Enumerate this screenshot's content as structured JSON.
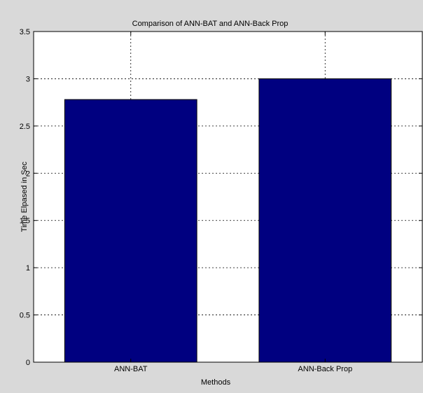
{
  "chart_data": {
    "type": "bar",
    "title": "Comparison of ANN-BAT and ANN-Back Prop",
    "xlabel": "Methods",
    "ylabel": "Time Elpased in Sec",
    "categories": [
      "ANN-BAT",
      "ANN-Back Prop"
    ],
    "values": [
      2.78,
      3.0
    ],
    "ylim": [
      0,
      3.5
    ],
    "yticks": [
      0,
      0.5,
      1,
      1.5,
      2,
      2.5,
      3,
      3.5
    ],
    "ytick_labels": [
      "0",
      "0.5",
      "1",
      "1.5",
      "2",
      "2.5",
      "3",
      "3.5"
    ],
    "grid": true,
    "bar_color": "#000080",
    "figure_background": "#d9d9d9",
    "axes_background": "#ffffff"
  }
}
